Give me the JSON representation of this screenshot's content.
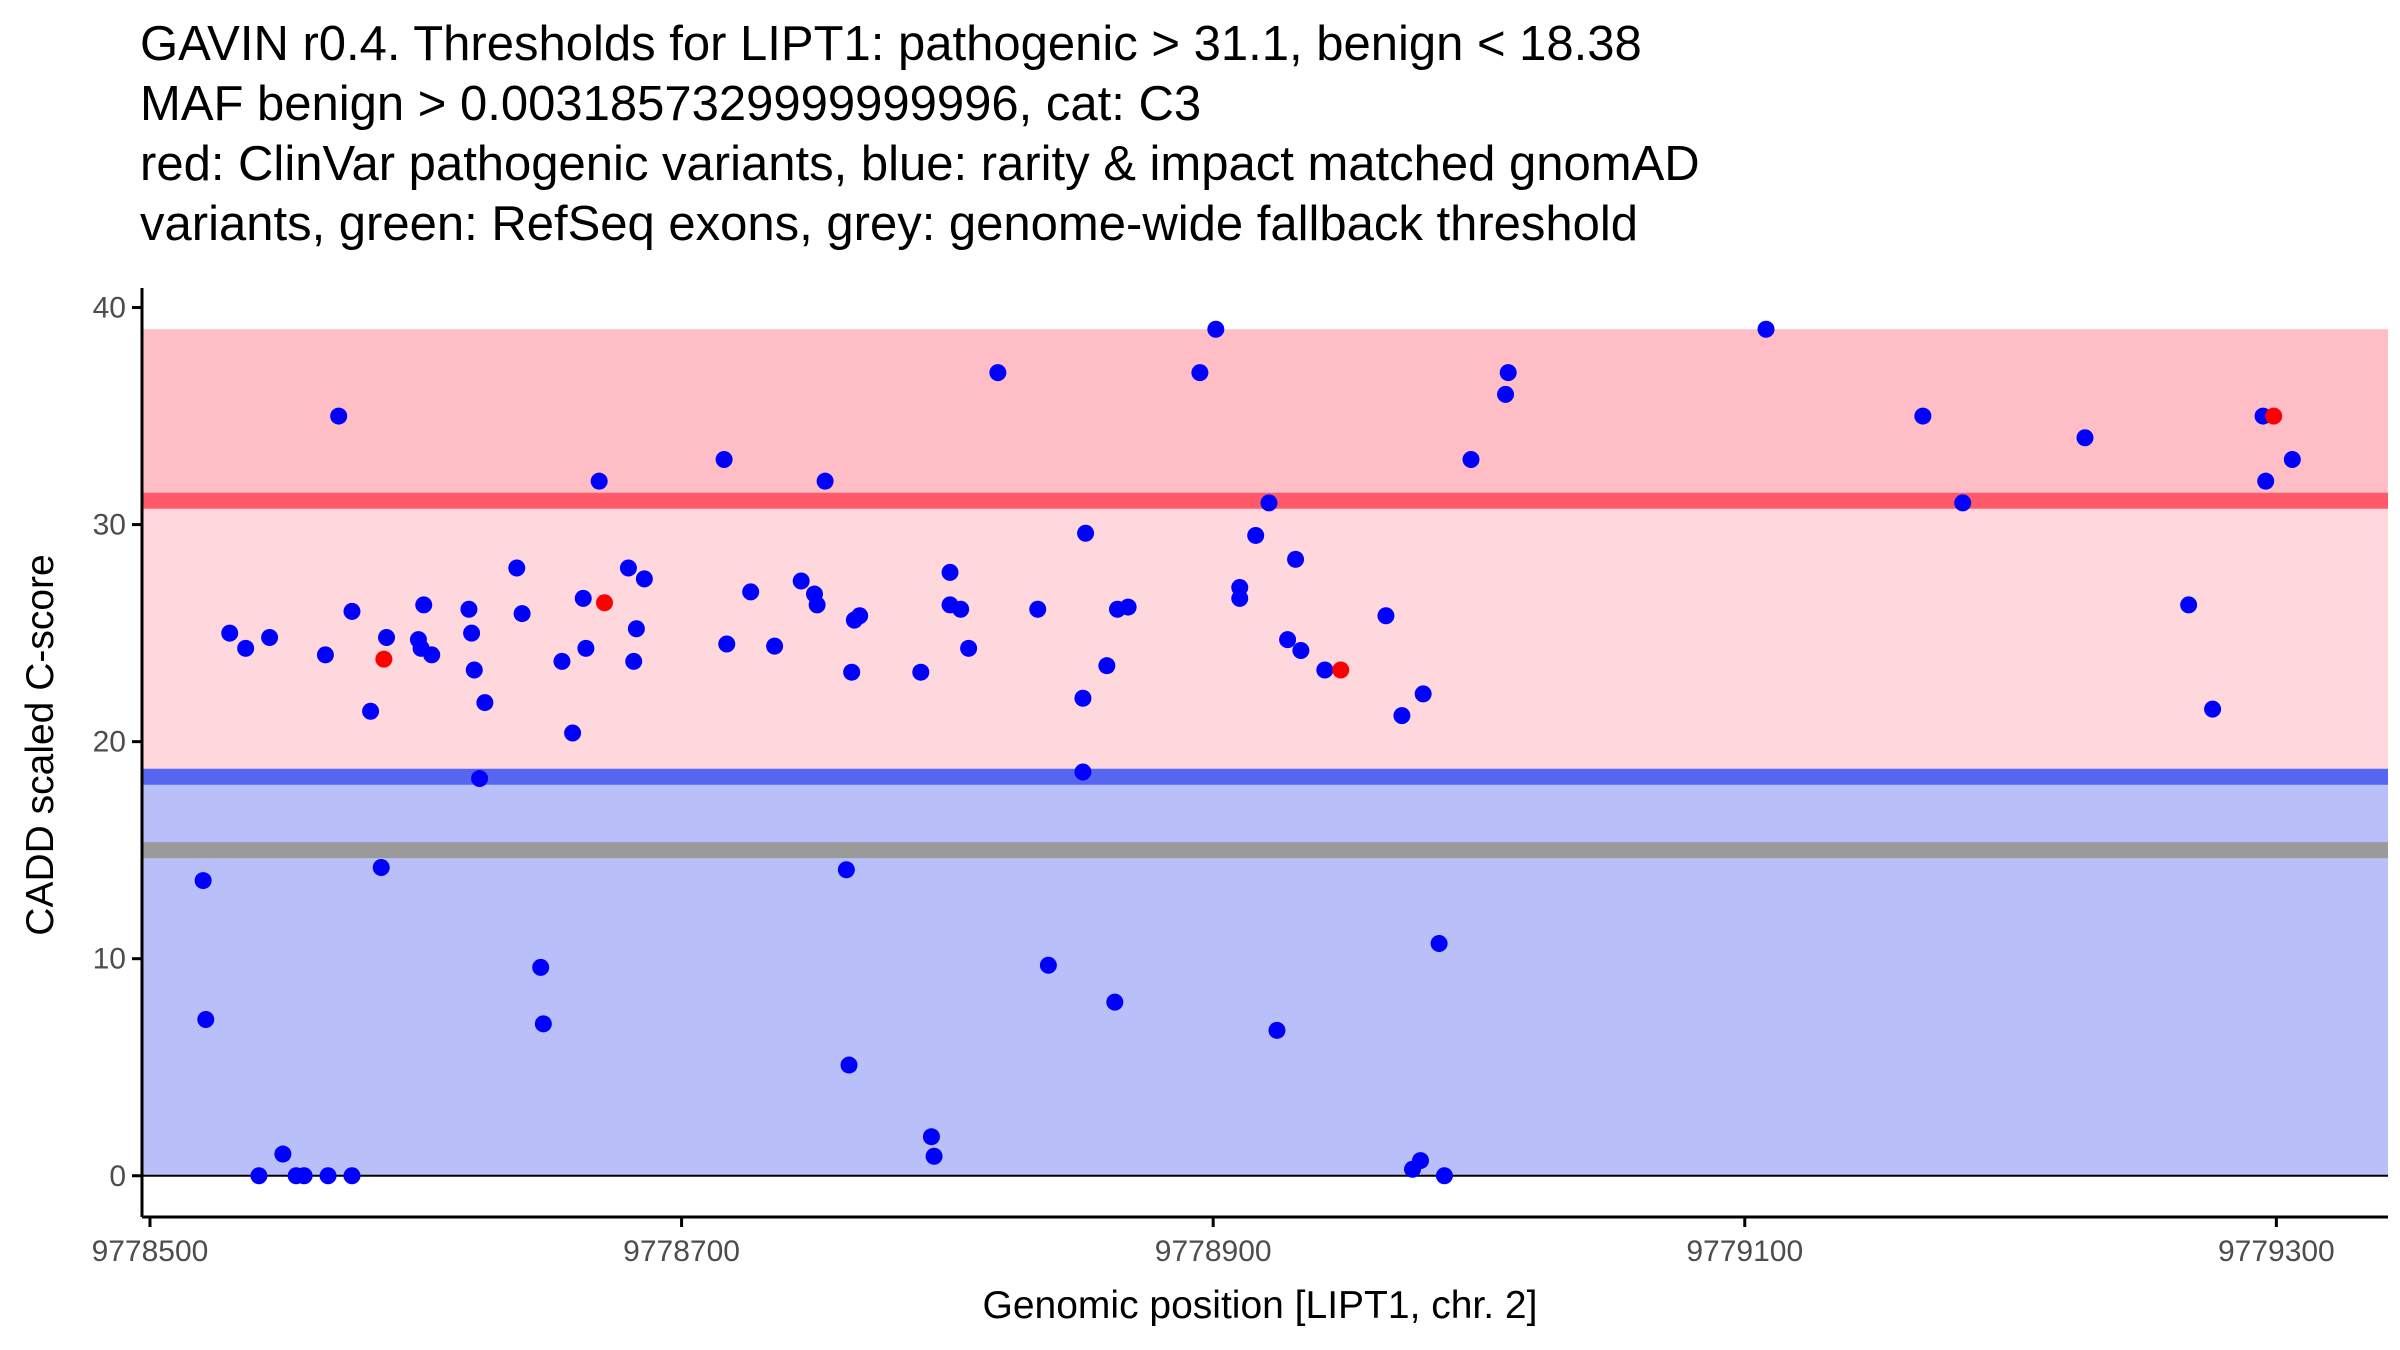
{
  "chart_data": {
    "type": "scatter",
    "title_lines": [
      "GAVIN r0.4. Thresholds for LIPT1: pathogenic > 31.1, benign < 18.38",
      "MAF benign > 0.0031857329999999996, cat: C3",
      "red: ClinVar pathogenic variants, blue: rarity & impact matched gnomAD",
      "variants, green: RefSeq exons, grey: genome-wide fallback threshold"
    ],
    "xlabel": "Genomic position [LIPT1, chr. 2]",
    "ylabel": "CADD scaled C-score",
    "xlim": [
      9778497,
      9779342
    ],
    "ylim": [
      -1.9,
      40.9
    ],
    "x_ticks": [
      9778500,
      9778700,
      9778900,
      9779100,
      9779300
    ],
    "x_tick_labels": [
      "9778500",
      "9778700",
      "9778900",
      "9779100",
      "9779300"
    ],
    "y_ticks": [
      0,
      10,
      20,
      30,
      40
    ],
    "y_tick_labels": [
      "0",
      "10",
      "20",
      "30",
      "40"
    ],
    "bands": [
      {
        "name": "pathogenic-zone-upper",
        "y0": 31.1,
        "y1": 39,
        "color": "#ffbec6"
      },
      {
        "name": "pathogenic-zone-lower",
        "y0": 18.38,
        "y1": 31.1,
        "color": "#ffd8de"
      },
      {
        "name": "benign-zone",
        "y0": 0,
        "y1": 18.38,
        "color": "#b9bff9"
      }
    ],
    "thresholds": [
      {
        "name": "pathogenic-threshold-line",
        "y": 31.1,
        "color": "#ff5a6a"
      },
      {
        "name": "benign-threshold-line",
        "y": 18.38,
        "color": "#5566f0"
      },
      {
        "name": "genome-wide-fallback-line",
        "y": 15,
        "color": "#9a9a9a"
      }
    ],
    "series": [
      {
        "name": "gnomAD variants",
        "color": "#0000ff",
        "points": [
          [
            9778520,
            13.6
          ],
          [
            9778521,
            7.2
          ],
          [
            9778530,
            25
          ],
          [
            9778536,
            24.3
          ],
          [
            9778541,
            0
          ],
          [
            9778545,
            24.8
          ],
          [
            9778550,
            1
          ],
          [
            9778555,
            0
          ],
          [
            9778558,
            0
          ],
          [
            9778567,
            0
          ],
          [
            9778576,
            0
          ],
          [
            9778566,
            24
          ],
          [
            9778571,
            35
          ],
          [
            9778576,
            26
          ],
          [
            9778583,
            21.4
          ],
          [
            9778587,
            14.2
          ],
          [
            9778589,
            24.8
          ],
          [
            9778601,
            24.7
          ],
          [
            9778602,
            24.3
          ],
          [
            9778603,
            26.3
          ],
          [
            9778606,
            24
          ],
          [
            9778620,
            26.1
          ],
          [
            9778621,
            25
          ],
          [
            9778622,
            23.3
          ],
          [
            9778624,
            18.3
          ],
          [
            9778626,
            21.8
          ],
          [
            9778638,
            28
          ],
          [
            9778640,
            25.9
          ],
          [
            9778647,
            9.6
          ],
          [
            9778648,
            7
          ],
          [
            9778655,
            23.7
          ],
          [
            9778659,
            20.4
          ],
          [
            9778663,
            26.6
          ],
          [
            9778664,
            24.3
          ],
          [
            9778669,
            32
          ],
          [
            9778680,
            28
          ],
          [
            9778682,
            23.7
          ],
          [
            9778683,
            25.2
          ],
          [
            9778686,
            27.5
          ],
          [
            9778716,
            33
          ],
          [
            9778717,
            24.5
          ],
          [
            9778726,
            26.9
          ],
          [
            9778735,
            24.4
          ],
          [
            9778745,
            27.4
          ],
          [
            9778750,
            26.8
          ],
          [
            9778751,
            26.3
          ],
          [
            9778754,
            32
          ],
          [
            9778762,
            14.1
          ],
          [
            9778763,
            5.1
          ],
          [
            9778764,
            23.2
          ],
          [
            9778765,
            25.6
          ],
          [
            9778767,
            25.8
          ],
          [
            9778790,
            23.2
          ],
          [
            9778794,
            1.8
          ],
          [
            9778795,
            0.9
          ],
          [
            9778801,
            27.8
          ],
          [
            9778801,
            26.3
          ],
          [
            9778805,
            26.1
          ],
          [
            9778808,
            24.3
          ],
          [
            9778819,
            37
          ],
          [
            9778834,
            26.1
          ],
          [
            9778838,
            9.7
          ],
          [
            9778851,
            18.6
          ],
          [
            9778851,
            22
          ],
          [
            9778852,
            29.6
          ],
          [
            9778860,
            23.5
          ],
          [
            9778863,
            8
          ],
          [
            9778864,
            26.1
          ],
          [
            9778868,
            26.2
          ],
          [
            9778895,
            37
          ],
          [
            9778901,
            39
          ],
          [
            9778910,
            27.1
          ],
          [
            9778910,
            26.6
          ],
          [
            9778916,
            29.5
          ],
          [
            9778921,
            31
          ],
          [
            9778924,
            6.7
          ],
          [
            9778928,
            24.7
          ],
          [
            9778931,
            28.4
          ],
          [
            9778933,
            24.2
          ],
          [
            9778942,
            23.3
          ],
          [
            9778965,
            25.8
          ],
          [
            9778971,
            21.2
          ],
          [
            9778975,
            0.3
          ],
          [
            9778978,
            0.7
          ],
          [
            9778979,
            22.2
          ],
          [
            9778985,
            10.7
          ],
          [
            9778987,
            0
          ],
          [
            9778997,
            33
          ],
          [
            9779010,
            36
          ],
          [
            9779011,
            37
          ],
          [
            9779108,
            39
          ],
          [
            9779167,
            35
          ],
          [
            9779182,
            31
          ],
          [
            9779228,
            34
          ],
          [
            9779267,
            26.3
          ],
          [
            9779276,
            21.5
          ],
          [
            9779295,
            35
          ],
          [
            9779296,
            32
          ],
          [
            9779306,
            33
          ]
        ]
      },
      {
        "name": "ClinVar pathogenic variants",
        "color": "#ff0000",
        "points": [
          [
            9778588,
            23.8
          ],
          [
            9778671,
            26.4
          ],
          [
            9778948,
            23.3
          ],
          [
            9779299,
            35
          ]
        ]
      }
    ]
  }
}
